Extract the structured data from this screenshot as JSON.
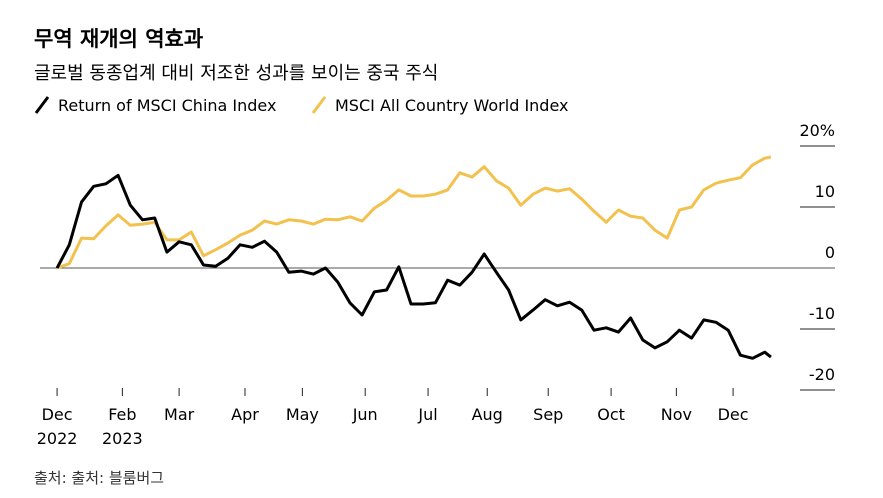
{
  "chart_data": {
    "type": "line",
    "title": "무역 재개의 역효과",
    "subtitle": "글로벌 동종업계 대비 저조한 성과를 보이는 중국 주식",
    "source": "출처: 출처: 블룸버그",
    "x": [
      0,
      0.2,
      0.4,
      0.6,
      0.8,
      1,
      1.2,
      1.4,
      1.6,
      1.8,
      2,
      2.2,
      2.4,
      2.6,
      2.8,
      3,
      3.2,
      3.4,
      3.6,
      3.8,
      4,
      4.2,
      4.4,
      4.6,
      4.8,
      5,
      5.2,
      5.4,
      5.6,
      5.8,
      6,
      6.2,
      6.4,
      6.6,
      6.8,
      7,
      7.2,
      7.4,
      7.6,
      7.8,
      8,
      8.2,
      8.4,
      8.6,
      8.8,
      9,
      9.2,
      9.4,
      9.6,
      9.8,
      10,
      10.2,
      10.4,
      10.6,
      10.8,
      11,
      11.2,
      11.4,
      11.6,
      11.7
    ],
    "series": [
      {
        "name": "Return of MSCI China Index",
        "color": "#000000",
        "values": [
          0,
          3.8,
          10.8,
          13.4,
          13.8,
          15.2,
          10.3,
          7.9,
          8.2,
          2.6,
          4.3,
          3.8,
          0.5,
          0.3,
          1.6,
          3.8,
          3.4,
          4.4,
          2.6,
          -0.7,
          -0.5,
          -1.0,
          0,
          -2.3,
          -5.7,
          -7.7,
          -3.9,
          -3.6,
          0.2,
          -5.9,
          -5.9,
          -5.7,
          -2.0,
          -2.8,
          -0.7,
          2.3,
          -0.7,
          -3.6,
          -8.5,
          -6.9,
          -5.2,
          -6.2,
          -5.6,
          -6.9,
          -10.2,
          -9.8,
          -10.5,
          -8.2,
          -11.8,
          -13.1,
          -12.1,
          -10.2,
          -11.5,
          -8.5,
          -8.9,
          -10.2,
          -14.3,
          -14.8,
          -13.8,
          -14.6
        ]
      },
      {
        "name": "MSCI All Country World Index",
        "color": "#f2c14e",
        "values": [
          0,
          0.7,
          4.9,
          4.8,
          6.9,
          8.7,
          7.0,
          7.2,
          7.5,
          4.6,
          4.6,
          5.9,
          2.0,
          3.0,
          4.1,
          5.4,
          6.2,
          7.7,
          7.2,
          7.9,
          7.7,
          7.2,
          8.0,
          7.9,
          8.4,
          7.7,
          9.8,
          11.1,
          12.8,
          11.8,
          11.8,
          12.1,
          12.8,
          15.6,
          14.9,
          16.6,
          14.3,
          13.1,
          10.3,
          12.1,
          13.1,
          12.6,
          13.0,
          11.3,
          9.3,
          7.5,
          9.5,
          8.5,
          8.2,
          6.2,
          4.9,
          9.5,
          10.0,
          12.8,
          13.9,
          14.4,
          14.8,
          16.9,
          18.0,
          18.2
        ]
      }
    ],
    "xlim": [
      -0.28,
      12.75
    ],
    "xticks": [
      {
        "value": 0,
        "label": "Dec"
      },
      {
        "value": 1.07,
        "label": "Feb"
      },
      {
        "value": 2.0,
        "label": "Mar"
      },
      {
        "value": 3.08,
        "label": "Apr"
      },
      {
        "value": 4.02,
        "label": "May"
      },
      {
        "value": 5.05,
        "label": "Jun"
      },
      {
        "value": 6.08,
        "label": "Jul"
      },
      {
        "value": 7.05,
        "label": "Aug"
      },
      {
        "value": 8.05,
        "label": "Sep"
      },
      {
        "value": 9.08,
        "label": "Oct"
      },
      {
        "value": 10.15,
        "label": "Nov"
      },
      {
        "value": 11.08,
        "label": "Dec"
      }
    ],
    "x_year_labels": [
      {
        "value": 0,
        "label": "2022"
      },
      {
        "value": 1.07,
        "label": "2023"
      }
    ],
    "ylim": [
      -20,
      20
    ],
    "yticks": [
      {
        "value": 20,
        "label": "20%"
      },
      10,
      0,
      -10,
      -20
    ]
  }
}
